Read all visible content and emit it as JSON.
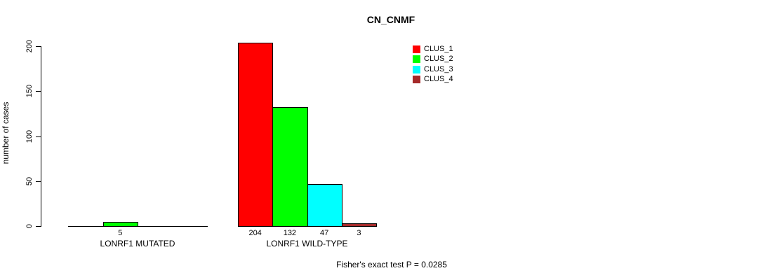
{
  "chart_data": {
    "type": "bar",
    "title": "CN_CNMF",
    "ylabel": "number of cases",
    "xlabel": "",
    "ylim": [
      0,
      200
    ],
    "yticks": [
      0,
      50,
      100,
      150,
      200
    ],
    "grid": false,
    "background": "#ffffff",
    "bar_border_color": "#000000",
    "legend": {
      "position": "top-right-inside",
      "items": [
        {
          "label": "CLUS_1",
          "color": "#FF0000"
        },
        {
          "label": "CLUS_2",
          "color": "#00FF00"
        },
        {
          "label": "CLUS_3",
          "color": "#00FFFF"
        },
        {
          "label": "CLUS_4",
          "color": "#A52A2A"
        }
      ]
    },
    "groups": [
      {
        "label": "LONRF1 MUTATED",
        "values": [
          0,
          5,
          0,
          0
        ]
      },
      {
        "label": "LONRF1 WILD-TYPE",
        "values": [
          204,
          132,
          47,
          3
        ]
      }
    ],
    "value_label_rule": "bars with value > 0 are labeled below the axis",
    "annotation": "Fisher's exact test P = 0.0285"
  }
}
